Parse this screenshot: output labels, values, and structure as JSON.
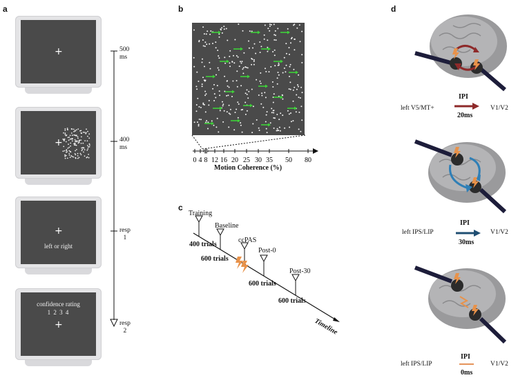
{
  "panels": {
    "a": "a",
    "b": "b",
    "c": "c",
    "d": "d"
  },
  "panel_a": {
    "screens": [
      {
        "text": "",
        "text2": ""
      },
      {
        "text": "",
        "text2": ""
      },
      {
        "text": "left or right",
        "text2": ""
      },
      {
        "text": "confidence rating",
        "text2": "1   2   3   4"
      }
    ],
    "timeline": [
      {
        "line1": "500",
        "line2": "ms"
      },
      {
        "line1": "400",
        "line2": "ms"
      },
      {
        "line1": "resp",
        "line2": "1"
      },
      {
        "line1": "resp",
        "line2": "2"
      }
    ]
  },
  "panel_b": {
    "axis_label": "Motion Coherence (%)",
    "ticks": [
      "0",
      "4",
      "8",
      "12",
      "16",
      "20",
      "25",
      "30",
      "35",
      "50",
      "80"
    ]
  },
  "panel_c": {
    "milestones": [
      "Training",
      "Baseline",
      "ccPAS",
      "Post-0",
      "Post-30"
    ],
    "trials": [
      "400 trials",
      "600 trials",
      "600 trials",
      "600 trials"
    ],
    "axis": "Timeline"
  },
  "panel_d": {
    "rows": [
      {
        "left": "left V5/MT+",
        "ipi": "IPI",
        "ms": "20ms",
        "right": "V1/V2",
        "arrow_color": "#8e2a2a"
      },
      {
        "left": "left IPS/LIP",
        "ipi": "IPI",
        "ms": "30ms",
        "right": "V1/V2",
        "arrow_color": "#1f4e72"
      },
      {
        "left": "left IPS/LIP",
        "ipi": "IPI",
        "ms": "0ms",
        "right": "V1/V2",
        "arrow_color": "#e5935a"
      }
    ]
  }
}
